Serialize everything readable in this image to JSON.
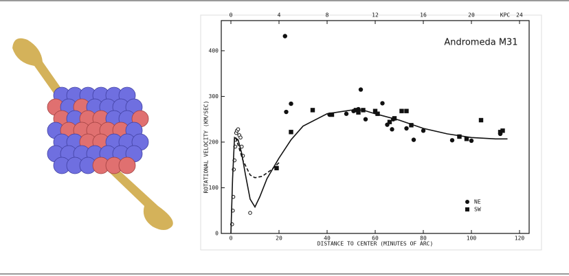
{
  "chart_data": {
    "type": "scatter",
    "annotation": "Andromeda M31",
    "xlabel": "DISTANCE TO CENTER (MINUTES OF ARC)",
    "ylabel": "ROTATIONAL VELOCITY (KM/SEC)",
    "x2label": "KPC",
    "xlim": [
      -4,
      124
    ],
    "xticks": [
      0,
      20,
      40,
      60,
      80,
      100,
      120
    ],
    "x2lim": [
      -0.8,
      24.8
    ],
    "x2ticks": [
      0,
      4,
      8,
      12,
      16,
      20,
      24
    ],
    "ylim": [
      0,
      466
    ],
    "yticks": [
      0,
      100,
      200,
      300,
      400
    ],
    "legend": "lower right",
    "series": [
      {
        "name": "NE",
        "marker": "circle",
        "color": "#111111",
        "x": [
          22.5,
          23,
          25,
          41,
          48,
          51,
          53,
          54,
          56,
          63,
          65,
          67,
          67.5,
          73,
          76,
          80,
          92,
          95,
          100,
          112
        ],
        "values": [
          432,
          266,
          284,
          260,
          262,
          268,
          272,
          315,
          250,
          285,
          238,
          228,
          250,
          230,
          205,
          225,
          204,
          212,
          203,
          218
        ]
      },
      {
        "name": "SW",
        "marker": "square",
        "color": "#111111",
        "x": [
          19,
          25,
          34,
          42,
          52,
          53,
          55,
          60,
          61,
          66,
          68,
          71,
          73,
          75,
          95,
          98,
          104,
          112,
          113
        ],
        "values": [
          143,
          222,
          270,
          260,
          270,
          265,
          270,
          268,
          262,
          244,
          252,
          268,
          268,
          237,
          212,
          207,
          248,
          222,
          225
        ]
      },
      {
        "marker": "open-circle",
        "color": "#111111",
        "x": [
          0.5,
          0.8,
          1,
          1.2,
          1.5,
          1.8,
          2,
          2.2,
          2.5,
          3,
          3.5,
          4,
          4.5,
          5,
          8
        ],
        "values": [
          20,
          50,
          80,
          140,
          160,
          190,
          205,
          220,
          225,
          228,
          215,
          210,
          190,
          170,
          45
        ]
      },
      {
        "type": "line",
        "style": "solid",
        "color": "#111111",
        "x": [
          0,
          0.7,
          1.5,
          3,
          4.5,
          6,
          8,
          10,
          12,
          15,
          20,
          25,
          30,
          40,
          50,
          55,
          60,
          70,
          80,
          90,
          100,
          110,
          115
        ],
        "values": [
          0,
          120,
          210,
          205,
          175,
          130,
          75,
          58,
          80,
          120,
          165,
          205,
          235,
          262,
          270,
          270,
          262,
          248,
          230,
          218,
          210,
          207,
          207
        ]
      },
      {
        "type": "line",
        "style": "dashed",
        "color": "#111111",
        "x": [
          2,
          5,
          8,
          10,
          13,
          17,
          20
        ],
        "values": [
          210,
          160,
          128,
          122,
          125,
          140,
          155
        ]
      }
    ]
  }
}
